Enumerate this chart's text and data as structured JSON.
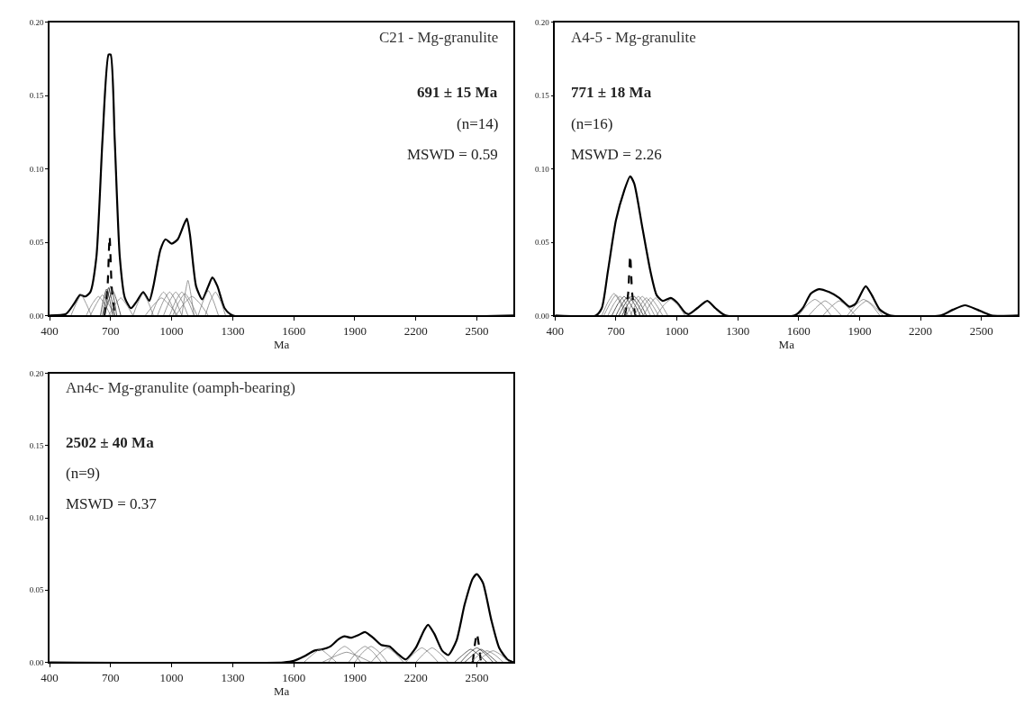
{
  "chart_data": [
    {
      "type": "line",
      "title": "C21 - Mg-granulite",
      "xlabel": "Ma",
      "xlim": [
        400,
        2680
      ],
      "xticks": [
        400,
        700,
        1000,
        1300,
        1600,
        1900,
        2200,
        2500
      ],
      "ylim": [
        0,
        0.2
      ],
      "yticks": [
        {
          "value": 0,
          "label": "0.00"
        },
        {
          "value": 0.05,
          "label": "0.05"
        },
        {
          "value": 0.1,
          "label": "0.10"
        },
        {
          "value": 0.15,
          "label": "0.15"
        },
        {
          "value": 0.2,
          "label": "0.20"
        }
      ],
      "annotations": [
        "691 ± 15 Ma",
        "(n=14)",
        "MSWD = 0.59"
      ],
      "series": [
        {
          "color": "#000000",
          "line_style": "solid",
          "x": [
            400,
            480,
            520,
            550,
            575,
            600,
            630,
            660,
            690,
            700,
            720,
            745,
            770,
            800,
            830,
            860,
            890,
            910,
            945,
            970,
            1000,
            1030,
            1060,
            1075,
            1090,
            1120,
            1150,
            1180,
            1200,
            1225,
            1260,
            1300,
            2680
          ],
          "values": [
            0,
            0.001,
            0.008,
            0.014,
            0.013,
            0.016,
            0.04,
            0.12,
            0.178,
            0.178,
            0.12,
            0.04,
            0.012,
            0.005,
            0.01,
            0.016,
            0.01,
            0.02,
            0.045,
            0.052,
            0.049,
            0.052,
            0.062,
            0.066,
            0.055,
            0.02,
            0.011,
            0.02,
            0.026,
            0.02,
            0.005,
            0,
            0
          ]
        },
        {
          "color": "#000000",
          "line_style": "dashed",
          "x": [
            670,
            685,
            695,
            705,
            720
          ],
          "values": [
            0,
            0.02,
            0.054,
            0.02,
            0
          ]
        },
        {
          "color": "#7f7f7f",
          "line_style": "solid",
          "x": [
            505,
            530,
            555,
            580,
            605
          ],
          "values": [
            0,
            0.008,
            0.014,
            0.008,
            0
          ]
        },
        {
          "color": "#7f7f7f",
          "line_style": "solid",
          "x": [
            580,
            610,
            640,
            670,
            700
          ],
          "values": [
            0,
            0.008,
            0.013,
            0.008,
            0
          ]
        },
        {
          "color": "#7f7f7f",
          "line_style": "solid",
          "x": [
            600,
            630,
            660,
            690,
            720
          ],
          "values": [
            0,
            0.008,
            0.014,
            0.008,
            0
          ]
        },
        {
          "color": "#303030",
          "line_style": "solid",
          "x": [
            650,
            665,
            680,
            695,
            710
          ],
          "values": [
            0,
            0.011,
            0.018,
            0.011,
            0
          ]
        },
        {
          "color": "#303030",
          "line_style": "solid",
          "x": [
            660,
            675,
            690,
            705,
            720
          ],
          "values": [
            0,
            0.011,
            0.019,
            0.011,
            0
          ]
        },
        {
          "color": "#303030",
          "line_style": "solid",
          "x": [
            670,
            685,
            700,
            715,
            730
          ],
          "values": [
            0,
            0.012,
            0.02,
            0.012,
            0
          ]
        },
        {
          "color": "#303030",
          "line_style": "solid",
          "x": [
            670,
            690,
            710,
            730,
            750
          ],
          "values": [
            0,
            0.01,
            0.017,
            0.01,
            0
          ]
        },
        {
          "color": "#7f7f7f",
          "line_style": "solid",
          "x": [
            690,
            720,
            750,
            780,
            810
          ],
          "values": [
            0,
            0.007,
            0.012,
            0.007,
            0
          ]
        },
        {
          "color": "#7f7f7f",
          "line_style": "solid",
          "x": [
            810,
            835,
            860,
            885,
            910
          ],
          "values": [
            0,
            0.009,
            0.015,
            0.009,
            0
          ]
        },
        {
          "color": "#7f7f7f",
          "line_style": "solid",
          "x": [
            870,
            910,
            950,
            990,
            1030
          ],
          "values": [
            0,
            0.007,
            0.012,
            0.007,
            0
          ]
        },
        {
          "color": "#7f7f7f",
          "line_style": "solid",
          "x": [
            900,
            930,
            960,
            990,
            1020
          ],
          "values": [
            0,
            0.01,
            0.016,
            0.01,
            0
          ]
        },
        {
          "color": "#7f7f7f",
          "line_style": "solid",
          "x": [
            930,
            960,
            990,
            1020,
            1050
          ],
          "values": [
            0,
            0.01,
            0.016,
            0.01,
            0
          ]
        },
        {
          "color": "#7f7f7f",
          "line_style": "solid",
          "x": [
            960,
            990,
            1020,
            1050,
            1080
          ],
          "values": [
            0,
            0.01,
            0.016,
            0.01,
            0
          ]
        },
        {
          "color": "#7f7f7f",
          "line_style": "solid",
          "x": [
            990,
            1020,
            1050,
            1080,
            1110
          ],
          "values": [
            0,
            0.01,
            0.016,
            0.01,
            0
          ]
        },
        {
          "color": "#7f7f7f",
          "line_style": "solid",
          "x": [
            1005,
            1035,
            1065,
            1095,
            1125
          ],
          "values": [
            0,
            0.009,
            0.015,
            0.009,
            0
          ]
        },
        {
          "color": "#7f7f7f",
          "line_style": "solid",
          "x": [
            1050,
            1065,
            1080,
            1095,
            1110
          ],
          "values": [
            0,
            0.014,
            0.024,
            0.014,
            0
          ]
        },
        {
          "color": "#7f7f7f",
          "line_style": "solid",
          "x": [
            1020,
            1060,
            1100,
            1140,
            1180
          ],
          "values": [
            0,
            0.008,
            0.013,
            0.008,
            0
          ]
        },
        {
          "color": "#7f7f7f",
          "line_style": "solid",
          "x": [
            1130,
            1155,
            1180,
            1205,
            1230
          ],
          "values": [
            0,
            0.01,
            0.017,
            0.01,
            0
          ]
        },
        {
          "color": "#7f7f7f",
          "line_style": "solid",
          "x": [
            1165,
            1190,
            1215,
            1240,
            1265
          ],
          "values": [
            0,
            0.01,
            0.016,
            0.01,
            0
          ]
        }
      ]
    },
    {
      "type": "line",
      "title": "A4-5 - Mg-granulite",
      "xlabel": "Ma",
      "xlim": [
        400,
        2680
      ],
      "xticks": [
        400,
        700,
        1000,
        1300,
        1600,
        1900,
        2200,
        2500
      ],
      "ylim": [
        0,
        0.2
      ],
      "yticks": [
        {
          "value": 0,
          "label": "0.00"
        },
        {
          "value": 0.05,
          "label": "0.05"
        },
        {
          "value": 0.1,
          "label": "0.10"
        },
        {
          "value": 0.15,
          "label": "0.15"
        },
        {
          "value": 0.2,
          "label": "0.20"
        }
      ],
      "annotations": [
        "771 ± 18 Ma",
        "(n=16)",
        "MSWD = 2.26"
      ],
      "series": [
        {
          "color": "#000000",
          "line_style": "solid",
          "x": [
            400,
            600,
            630,
            660,
            700,
            740,
            770,
            790,
            830,
            870,
            900,
            930,
            970,
            1000,
            1040,
            1060,
            1100,
            1150,
            1190,
            1240,
            1580,
            1620,
            1660,
            1700,
            1750,
            1800,
            1850,
            1880,
            1930,
            1960,
            2000,
            2050,
            2300,
            2360,
            2420,
            2480,
            2550,
            2680
          ],
          "values": [
            0,
            0,
            0.005,
            0.03,
            0.065,
            0.085,
            0.095,
            0.09,
            0.06,
            0.03,
            0.014,
            0.01,
            0.012,
            0.009,
            0.002,
            0.001,
            0.005,
            0.01,
            0.005,
            0,
            0,
            0.005,
            0.015,
            0.018,
            0.016,
            0.012,
            0.006,
            0.008,
            0.02,
            0.014,
            0.004,
            0,
            0,
            0.004,
            0.007,
            0.004,
            0,
            0
          ]
        },
        {
          "color": "#000000",
          "line_style": "dashed",
          "x": [
            745,
            760,
            770,
            780,
            795
          ],
          "values": [
            0,
            0.015,
            0.041,
            0.015,
            0
          ]
        },
        {
          "color": "#7f7f7f",
          "line_style": "solid",
          "x": [
            630,
            660,
            690,
            720,
            750
          ],
          "values": [
            0,
            0.009,
            0.015,
            0.009,
            0
          ]
        },
        {
          "color": "#7f7f7f",
          "line_style": "solid",
          "x": [
            640,
            670,
            700,
            730,
            760
          ],
          "values": [
            0,
            0.008,
            0.014,
            0.008,
            0
          ]
        },
        {
          "color": "#7f7f7f",
          "line_style": "solid",
          "x": [
            660,
            690,
            720,
            750,
            780
          ],
          "values": [
            0,
            0.008,
            0.013,
            0.008,
            0
          ]
        },
        {
          "color": "#303030",
          "line_style": "solid",
          "x": [
            680,
            710,
            740,
            770,
            800
          ],
          "values": [
            0,
            0.008,
            0.013,
            0.008,
            0
          ]
        },
        {
          "color": "#303030",
          "line_style": "solid",
          "x": [
            700,
            730,
            760,
            790,
            820
          ],
          "values": [
            0,
            0.008,
            0.013,
            0.008,
            0
          ]
        },
        {
          "color": "#303030",
          "line_style": "solid",
          "x": [
            715,
            745,
            775,
            805,
            835
          ],
          "values": [
            0,
            0.008,
            0.013,
            0.008,
            0
          ]
        },
        {
          "color": "#303030",
          "line_style": "solid",
          "x": [
            730,
            760,
            790,
            820,
            850
          ],
          "values": [
            0,
            0.008,
            0.013,
            0.008,
            0
          ]
        },
        {
          "color": "#7f7f7f",
          "line_style": "solid",
          "x": [
            750,
            780,
            810,
            840,
            870
          ],
          "values": [
            0,
            0.008,
            0.013,
            0.008,
            0
          ]
        },
        {
          "color": "#7f7f7f",
          "line_style": "solid",
          "x": [
            770,
            800,
            830,
            860,
            890
          ],
          "values": [
            0,
            0.008,
            0.013,
            0.008,
            0
          ]
        },
        {
          "color": "#7f7f7f",
          "line_style": "solid",
          "x": [
            790,
            820,
            850,
            880,
            910
          ],
          "values": [
            0,
            0.007,
            0.012,
            0.007,
            0
          ]
        },
        {
          "color": "#7f7f7f",
          "line_style": "solid",
          "x": [
            810,
            840,
            870,
            900,
            930
          ],
          "values": [
            0,
            0.007,
            0.012,
            0.007,
            0
          ]
        },
        {
          "color": "#7f7f7f",
          "line_style": "solid",
          "x": [
            835,
            865,
            895,
            925,
            955
          ],
          "values": [
            0,
            0.007,
            0.012,
            0.007,
            0
          ]
        },
        {
          "color": "#7f7f7f",
          "line_style": "solid",
          "x": [
            900,
            935,
            970,
            1005,
            1040
          ],
          "values": [
            0,
            0.007,
            0.011,
            0.007,
            0
          ]
        },
        {
          "color": "#7f7f7f",
          "line_style": "solid",
          "x": [
            1600,
            1640,
            1680,
            1720,
            1760
          ],
          "values": [
            0,
            0.007,
            0.011,
            0.007,
            0
          ]
        },
        {
          "color": "#7f7f7f",
          "line_style": "solid",
          "x": [
            1650,
            1690,
            1730,
            1770,
            1810
          ],
          "values": [
            0,
            0.006,
            0.01,
            0.006,
            0
          ]
        },
        {
          "color": "#7f7f7f",
          "line_style": "solid",
          "x": [
            1720,
            1760,
            1800,
            1840,
            1880
          ],
          "values": [
            0,
            0.006,
            0.01,
            0.006,
            0
          ]
        },
        {
          "color": "#7f7f7f",
          "line_style": "solid",
          "x": [
            1840,
            1880,
            1920,
            1960,
            2000
          ],
          "values": [
            0,
            0.007,
            0.011,
            0.007,
            0
          ]
        },
        {
          "color": "#7f7f7f",
          "line_style": "solid",
          "x": [
            1855,
            1895,
            1935,
            1975,
            2015
          ],
          "values": [
            0,
            0.006,
            0.01,
            0.006,
            0
          ]
        }
      ]
    },
    {
      "type": "line",
      "title": "An4c- Mg-granulite (oamph-bearing)",
      "xlabel": "Ma",
      "xlim": [
        400,
        2680
      ],
      "xticks": [
        400,
        700,
        1000,
        1300,
        1600,
        1900,
        2200,
        2500
      ],
      "ylim": [
        0,
        0.2
      ],
      "yticks": [
        {
          "value": 0,
          "label": "0.00"
        },
        {
          "value": 0.05,
          "label": "0.05"
        },
        {
          "value": 0.1,
          "label": "0.10"
        },
        {
          "value": 0.15,
          "label": "0.15"
        },
        {
          "value": 0.2,
          "label": "0.20"
        }
      ],
      "annotations": [
        "2502 ± 40 Ma",
        "(n=9)",
        "MSWD = 0.37"
      ],
      "series": [
        {
          "color": "#000000",
          "line_style": "solid",
          "x": [
            400,
            1550,
            1600,
            1650,
            1700,
            1740,
            1780,
            1820,
            1850,
            1880,
            1920,
            1950,
            1990,
            2030,
            2070,
            2110,
            2150,
            2200,
            2240,
            2260,
            2290,
            2330,
            2360,
            2400,
            2440,
            2480,
            2500,
            2530,
            2570,
            2610,
            2650,
            2680
          ],
          "values": [
            0,
            0,
            0.001,
            0.004,
            0.008,
            0.009,
            0.011,
            0.016,
            0.018,
            0.017,
            0.019,
            0.021,
            0.017,
            0.012,
            0.011,
            0.006,
            0.002,
            0.01,
            0.022,
            0.026,
            0.02,
            0.008,
            0.005,
            0.015,
            0.04,
            0.058,
            0.061,
            0.055,
            0.03,
            0.01,
            0.002,
            0
          ]
        },
        {
          "color": "#000000",
          "line_style": "dashed",
          "x": [
            2480,
            2490,
            2500,
            2510,
            2520
          ],
          "values": [
            0,
            0.012,
            0.02,
            0.012,
            0
          ]
        },
        {
          "color": "#7f7f7f",
          "line_style": "solid",
          "x": [
            1650,
            1690,
            1730,
            1770,
            1810
          ],
          "values": [
            0,
            0.005,
            0.009,
            0.005,
            0
          ]
        },
        {
          "color": "#7f7f7f",
          "line_style": "solid",
          "x": [
            1770,
            1810,
            1850,
            1890,
            1930
          ],
          "values": [
            0,
            0.007,
            0.011,
            0.007,
            0
          ]
        },
        {
          "color": "#7f7f7f",
          "line_style": "solid",
          "x": [
            1740,
            1800,
            1860,
            1920,
            1980
          ],
          "values": [
            0,
            0.004,
            0.007,
            0.004,
            0
          ]
        },
        {
          "color": "#7f7f7f",
          "line_style": "solid",
          "x": [
            1870,
            1910,
            1950,
            1990,
            2030
          ],
          "values": [
            0,
            0.007,
            0.011,
            0.007,
            0
          ]
        },
        {
          "color": "#7f7f7f",
          "line_style": "solid",
          "x": [
            1900,
            1940,
            1980,
            2020,
            2060
          ],
          "values": [
            0,
            0.007,
            0.011,
            0.007,
            0
          ]
        },
        {
          "color": "#7f7f7f",
          "line_style": "solid",
          "x": [
            1980,
            2020,
            2060,
            2100,
            2140
          ],
          "values": [
            0,
            0.006,
            0.01,
            0.006,
            0
          ]
        },
        {
          "color": "#7f7f7f",
          "line_style": "solid",
          "x": [
            2150,
            2190,
            2230,
            2270,
            2310
          ],
          "values": [
            0,
            0.006,
            0.01,
            0.006,
            0
          ]
        },
        {
          "color": "#7f7f7f",
          "line_style": "solid",
          "x": [
            2200,
            2240,
            2280,
            2320,
            2360
          ],
          "values": [
            0,
            0.006,
            0.01,
            0.006,
            0
          ]
        },
        {
          "color": "#303030",
          "line_style": "solid",
          "x": [
            2390,
            2430,
            2470,
            2510,
            2550
          ],
          "values": [
            0,
            0.005,
            0.009,
            0.005,
            0
          ]
        },
        {
          "color": "#303030",
          "line_style": "solid",
          "x": [
            2420,
            2460,
            2500,
            2540,
            2580
          ],
          "values": [
            0,
            0.006,
            0.01,
            0.006,
            0
          ]
        },
        {
          "color": "#303030",
          "line_style": "solid",
          "x": [
            2440,
            2480,
            2520,
            2560,
            2600
          ],
          "values": [
            0,
            0.005,
            0.009,
            0.005,
            0
          ]
        },
        {
          "color": "#7f7f7f",
          "line_style": "solid",
          "x": [
            2470,
            2510,
            2550,
            2590,
            2630
          ],
          "values": [
            0,
            0.005,
            0.008,
            0.005,
            0
          ]
        },
        {
          "color": "#7f7f7f",
          "line_style": "solid",
          "x": [
            2500,
            2540,
            2580,
            2620,
            2660
          ],
          "values": [
            0,
            0.005,
            0.008,
            0.005,
            0
          ]
        }
      ]
    }
  ]
}
